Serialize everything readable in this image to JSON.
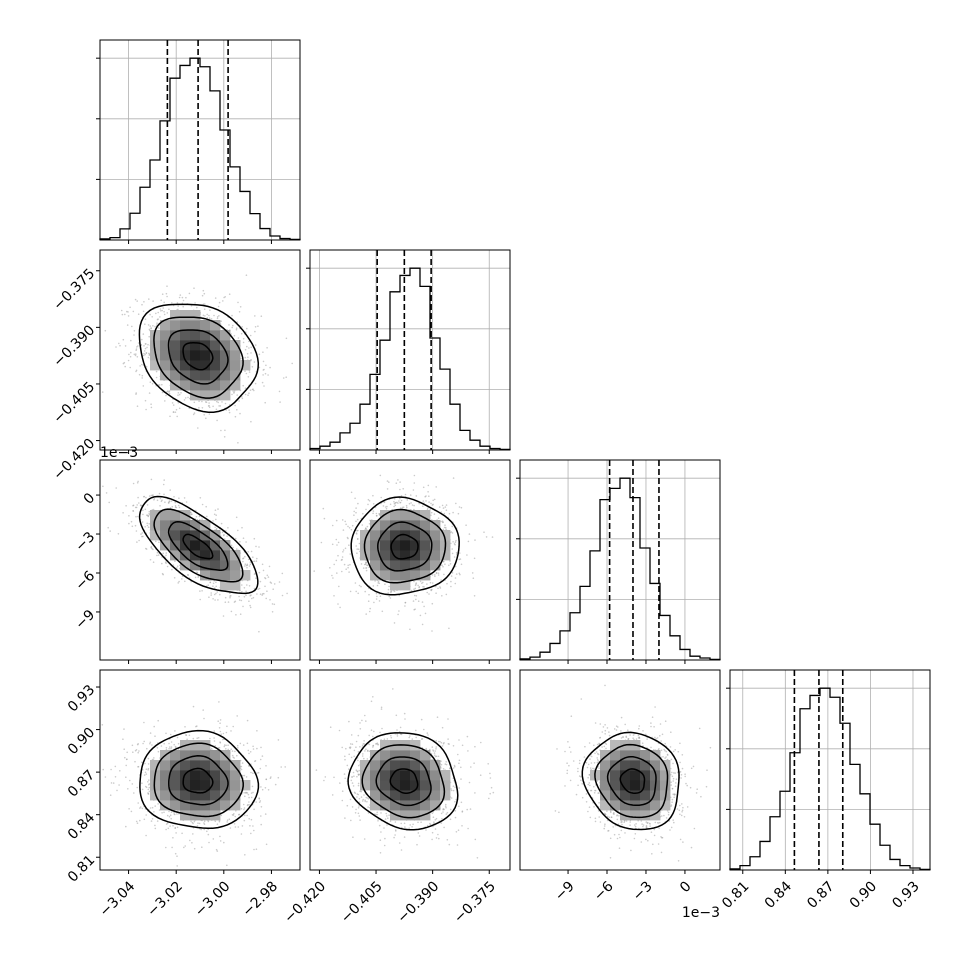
{
  "chart_data": {
    "type": "corner",
    "parameters": [
      {
        "index": 0,
        "range": [
          -3.052,
          -2.968
        ],
        "ticks": [
          -3.04,
          -3.02,
          -3.0,
          -2.98
        ],
        "tick_labels": [
          "−3.04",
          "−3.02",
          "−3.00",
          "−2.98"
        ],
        "quantiles": [
          -3.0237,
          -3.0108,
          -2.9982
        ],
        "histogram": [
          0.006,
          0.013,
          0.061,
          0.147,
          0.29,
          0.44,
          0.655,
          0.89,
          0.96,
          1.0,
          0.953,
          0.82,
          0.605,
          0.402,
          0.267,
          0.145,
          0.063,
          0.022,
          0.008,
          0.003
        ]
      },
      {
        "index": 1,
        "range": [
          -0.4225,
          -0.3695
        ],
        "ticks": [
          -0.42,
          -0.405,
          -0.39,
          -0.375
        ],
        "tick_labels": [
          "−0.420",
          "−0.405",
          "−0.390",
          "−0.375"
        ],
        "quantiles": [
          -0.4047,
          -0.3975,
          -0.3904
        ],
        "histogram": [
          0.008,
          0.021,
          0.043,
          0.094,
          0.147,
          0.252,
          0.416,
          0.604,
          0.87,
          0.96,
          1.0,
          0.9,
          0.616,
          0.445,
          0.252,
          0.108,
          0.054,
          0.021,
          0.008,
          0.003
        ]
      },
      {
        "index": 2,
        "range": [
          -0.0127,
          0.0027
        ],
        "ticks": [
          -0.009,
          -0.006,
          -0.003,
          0.0
        ],
        "tick_labels": [
          "−9",
          "−6",
          "−3",
          "0"
        ],
        "offset_label": "1e−3",
        "quantiles": [
          -0.0058,
          -0.004,
          -0.002
        ],
        "histogram": [
          0.006,
          0.016,
          0.043,
          0.091,
          0.16,
          0.26,
          0.405,
          0.6,
          0.882,
          0.944,
          1.0,
          0.893,
          0.616,
          0.421,
          0.245,
          0.133,
          0.058,
          0.021,
          0.011,
          0.003
        ]
      },
      {
        "index": 3,
        "range": [
          0.801,
          0.942
        ],
        "ticks": [
          0.81,
          0.84,
          0.87,
          0.9,
          0.93
        ],
        "tick_labels": [
          "0.81",
          "0.84",
          "0.87",
          "0.90",
          "0.93"
        ],
        "quantiles": [
          0.8464,
          0.8637,
          0.8805
        ],
        "histogram": [
          0.006,
          0.024,
          0.073,
          0.157,
          0.293,
          0.433,
          0.645,
          0.887,
          0.96,
          1.0,
          0.95,
          0.807,
          0.581,
          0.419,
          0.252,
          0.136,
          0.058,
          0.024,
          0.011,
          0.003
        ]
      }
    ],
    "pairs": [
      {
        "x": 0,
        "y": 1,
        "mean": [
          -3.011,
          -0.3975
        ],
        "sd": [
          0.0124,
          0.00715
        ],
        "rho": -0.22
      },
      {
        "x": 0,
        "y": 2,
        "mean": [
          -3.011,
          -0.004
        ],
        "sd": [
          0.0124,
          0.00185
        ],
        "rho": -0.68
      },
      {
        "x": 1,
        "y": 2,
        "mean": [
          -0.3975,
          -0.004
        ],
        "sd": [
          0.00715,
          0.00185
        ],
        "rho": 0.02
      },
      {
        "x": 0,
        "y": 3,
        "mean": [
          -3.011,
          0.8637
        ],
        "sd": [
          0.0124,
          0.0171
        ],
        "rho": -0.05
      },
      {
        "x": 1,
        "y": 3,
        "mean": [
          -0.3975,
          0.8637
        ],
        "sd": [
          0.00715,
          0.0171
        ],
        "rho": -0.12
      },
      {
        "x": 2,
        "y": 3,
        "mean": [
          -0.004,
          0.8637
        ],
        "sd": [
          0.00185,
          0.0171
        ],
        "rho": -0.1
      }
    ],
    "contour_levels_sigma": [
      0.5,
      1.0,
      1.5,
      2.0
    ],
    "grid": true,
    "quantile_line_style": "dashed",
    "colors": {
      "line": "#000000",
      "grid": "#b0b0b0",
      "points": "#a0a0a0"
    }
  }
}
